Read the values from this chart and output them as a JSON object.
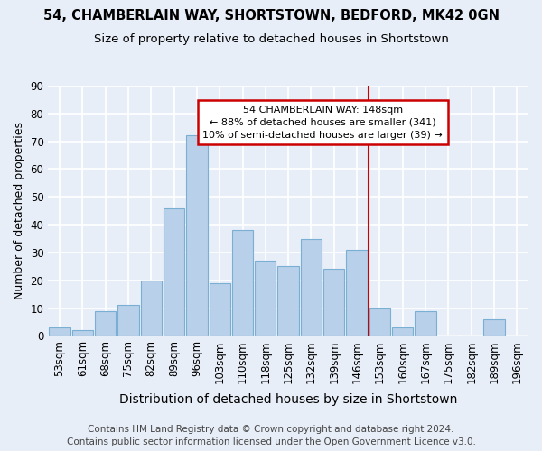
{
  "title1": "54, CHAMBERLAIN WAY, SHORTSTOWN, BEDFORD, MK42 0GN",
  "title2": "Size of property relative to detached houses in Shortstown",
  "xlabel": "Distribution of detached houses by size in Shortstown",
  "ylabel": "Number of detached properties",
  "categories": [
    "53sqm",
    "61sqm",
    "68sqm",
    "75sqm",
    "82sqm",
    "89sqm",
    "96sqm",
    "103sqm",
    "110sqm",
    "118sqm",
    "125sqm",
    "132sqm",
    "139sqm",
    "146sqm",
    "153sqm",
    "160sqm",
    "167sqm",
    "175sqm",
    "182sqm",
    "189sqm",
    "196sqm"
  ],
  "values": [
    3,
    2,
    9,
    11,
    20,
    46,
    72,
    19,
    38,
    27,
    25,
    35,
    24,
    31,
    10,
    3,
    9,
    0,
    0,
    6,
    0
  ],
  "bar_color": "#b8d0ea",
  "bar_edge_color": "#7aafd4",
  "background_color": "#e8eef8",
  "grid_color": "#ffffff",
  "vline_x": 13.5,
  "annotation_line1": "54 CHAMBERLAIN WAY: 148sqm",
  "annotation_line2": "← 88% of detached houses are smaller (341)",
  "annotation_line3": "10% of semi-detached houses are larger (39) →",
  "annotation_color": "#cc0000",
  "ylim": [
    0,
    90
  ],
  "yticks": [
    0,
    10,
    20,
    30,
    40,
    50,
    60,
    70,
    80,
    90
  ],
  "footer1": "Contains HM Land Registry data © Crown copyright and database right 2024.",
  "footer2": "Contains public sector information licensed under the Open Government Licence v3.0.",
  "title1_fontsize": 10.5,
  "title2_fontsize": 9.5,
  "xlabel_fontsize": 10,
  "ylabel_fontsize": 9,
  "tick_fontsize": 8.5,
  "annotation_fontsize": 8,
  "footer_fontsize": 7.5
}
